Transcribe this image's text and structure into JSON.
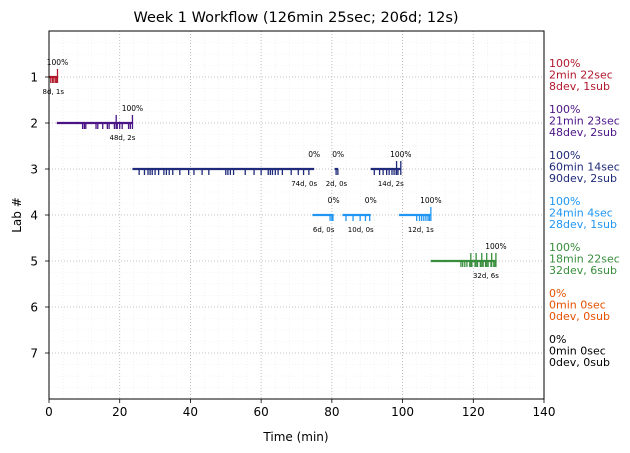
{
  "chart_data": {
    "type": "timeline",
    "title": "Week 1 Workflow (126min 25sec; 206d; 12s)",
    "xlabel": "Time (min)",
    "ylabel": "Lab #",
    "xlim": [
      0,
      140
    ],
    "ylim": [
      8,
      0
    ],
    "xticks": [
      "0",
      "20",
      "40",
      "60",
      "80",
      "100",
      "120",
      "140"
    ],
    "yticks": [
      "1",
      "2",
      "3",
      "4",
      "5",
      "6",
      "7"
    ],
    "grid": true,
    "lanes": [
      {
        "lab": 1,
        "color": "#b2182b",
        "summary": [
          "100%",
          "2min 22sec",
          "8dev, 1sub"
        ],
        "segments": [
          {
            "start": 0.0,
            "end": 2.4,
            "label": "8d, 1s",
            "pct": "100%",
            "devs": [
              0.5,
              1.0,
              1.4,
              1.9,
              2.2
            ],
            "subs": [
              2.4
            ]
          }
        ]
      },
      {
        "lab": 2,
        "color": "#4a1486",
        "summary": [
          "100%",
          "21min 23sec",
          "48dev, 2sub"
        ],
        "segments": [
          {
            "start": 2.2,
            "end": 23.6,
            "label": "48d, 2s",
            "pct": "100%",
            "devs": [
              9.5,
              10.0,
              10.4,
              13.3,
              13.8,
              15.2,
              16.5,
              17.0,
              18.5,
              19.3,
              20.0,
              20.7,
              22.5,
              23.0
            ],
            "subs": [
              19.0,
              23.6
            ]
          }
        ]
      },
      {
        "lab": 3,
        "color": "#1f2a7a",
        "summary": [
          "100%",
          "60min 14sec",
          "90dev, 2sub"
        ],
        "segments": [
          {
            "start": 23.6,
            "end": 75.0,
            "label": "74d, 0s",
            "pct": "0%",
            "devs": [
              25.5,
              27.0,
              28.0,
              28.6,
              29.2,
              30.0,
              31.0,
              32.5,
              33.2,
              34.0,
              35.0,
              37.0,
              39.5,
              41.0,
              43.3,
              45.2,
              50.0,
              50.6,
              51.3,
              52.2,
              55.5,
              58.0,
              60.0,
              62.0,
              62.6,
              63.2,
              64.0,
              64.8,
              66.0,
              68.5,
              70.5,
              72.0,
              73.5
            ],
            "subs": []
          },
          {
            "start": 80.8,
            "end": 81.8,
            "label": "2d, 0s",
            "pct": "0%",
            "devs": [
              81.2,
              81.7
            ],
            "subs": []
          },
          {
            "start": 91.0,
            "end": 99.5,
            "label": "14d, 2s",
            "pct": "100%",
            "devs": [
              92.0,
              93.5,
              94.5,
              95.5,
              96.2,
              97.0,
              97.6,
              98.2,
              98.7
            ],
            "subs": [
              98.3,
              99.5
            ]
          }
        ]
      },
      {
        "lab": 4,
        "color": "#2196f3",
        "summary": [
          "100%",
          "24min 4sec",
          "28dev, 1sub"
        ],
        "segments": [
          {
            "start": 74.5,
            "end": 80.5,
            "label": "6d, 0s",
            "pct": "0%",
            "devs": [
              79.5,
              80.0,
              80.3
            ],
            "subs": []
          },
          {
            "start": 83.0,
            "end": 91.0,
            "label": "10d, 0s",
            "pct": "0%",
            "devs": [
              84.0,
              86.0,
              88.0,
              89.5,
              90.7
            ],
            "subs": []
          },
          {
            "start": 99.0,
            "end": 108.0,
            "label": "12d, 1s",
            "pct": "100%",
            "devs": [
              104.0,
              104.8,
              105.4,
              106.0,
              106.6,
              107.2,
              107.6
            ],
            "subs": [
              108.0
            ]
          }
        ]
      },
      {
        "lab": 5,
        "color": "#388e3c",
        "summary": [
          "100%",
          "18min 22sec",
          "32dev, 6sub"
        ],
        "segments": [
          {
            "start": 108.0,
            "end": 126.4,
            "label": "32d, 6s",
            "pct": "100%",
            "devs": [
              116.5,
              117.0,
              117.6,
              118.2,
              119.0,
              119.6,
              120.5,
              121.2,
              122.0,
              122.8,
              123.5,
              124.2,
              125.0,
              125.8,
              126.2
            ],
            "subs": [
              119.3,
              120.8,
              122.4,
              123.8,
              125.2,
              126.4
            ]
          }
        ]
      },
      {
        "lab": 6,
        "color": "#e65100",
        "summary": [
          "0%",
          "0min 0sec",
          "0dev, 0sub"
        ],
        "segments": []
      },
      {
        "lab": 7,
        "color": "#000000",
        "summary": [
          "0%",
          "0min 0sec",
          "0dev, 0sub"
        ],
        "segments": []
      }
    ]
  }
}
